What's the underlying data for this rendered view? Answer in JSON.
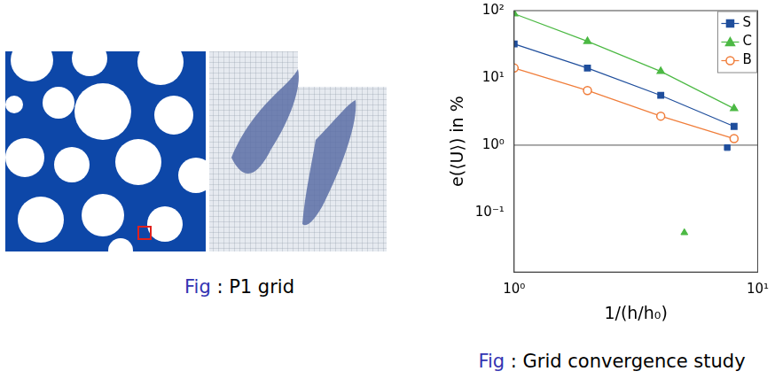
{
  "chart_data": {
    "type": "line",
    "caption": "Fig : Grid convergence study",
    "x_label": "1/(h/h₀)",
    "y_label": "e(⟨U⟩) in %",
    "log": true,
    "grid": false,
    "legend": "upper right",
    "xlim": [
      1,
      10
    ],
    "ylim": [
      0.013,
      100
    ],
    "xticks": [
      {
        "value": 1,
        "label": "10⁰"
      },
      {
        "value": 10,
        "label": "10¹"
      }
    ],
    "yticks": [
      {
        "value": 0.1,
        "label": "10⁻¹"
      },
      {
        "value": 1,
        "label": "10⁰"
      },
      {
        "value": 10,
        "label": "10¹"
      },
      {
        "value": 100,
        "label": "10²"
      }
    ],
    "hline": 1,
    "series": [
      {
        "name": "S",
        "color": "#1f4e9c",
        "marker": "square",
        "x": [
          1,
          2,
          4,
          8
        ],
        "values": [
          32,
          14,
          5.5,
          1.9
        ],
        "extra_points": {
          "x": [
            7.5
          ],
          "values": [
            0.92
          ]
        }
      },
      {
        "name": "C",
        "color": "#4cb944",
        "marker": "triangle",
        "x": [
          1,
          2,
          4,
          8
        ],
        "values": [
          90,
          35,
          12.5,
          3.5
        ],
        "extra_points": {
          "x": [
            5
          ],
          "values": [
            0.05
          ]
        }
      },
      {
        "name": "B",
        "color": "#f07d3a",
        "marker": "circle",
        "x": [
          1,
          2,
          4,
          8
        ],
        "values": [
          14,
          6.5,
          2.7,
          1.25
        ]
      }
    ]
  },
  "left_figure": {
    "caption": "Fig : P1 grid"
  }
}
